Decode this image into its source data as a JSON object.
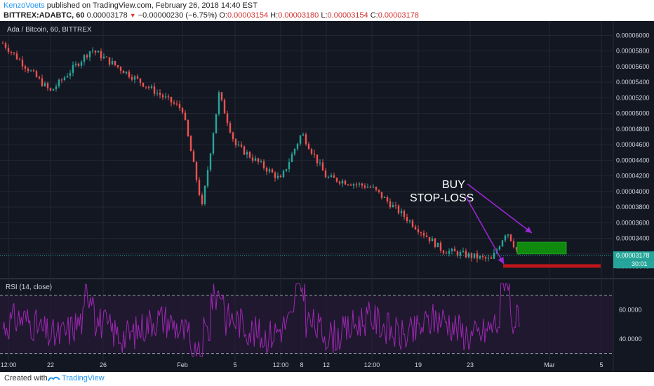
{
  "header": {
    "author": "KenzoVoets",
    "published": "published on TradingView.com, February 26, 2018 14:40 EST",
    "symbol": "BITTREX:ADABTC, 60",
    "last": "0.00003178",
    "change": "−0.00000230 (−6.75%)",
    "o_label": "O:",
    "o_value": "0.00003154",
    "h_label": "H:",
    "h_value": "0.00003180",
    "l_label": "L:",
    "l_value": "0.00003154",
    "c_label": "C:",
    "c_value": "0.00003178"
  },
  "footer": {
    "created_with": "Created with",
    "brand": "TradingView"
  },
  "colors": {
    "background": "#131722",
    "up": "#26a69a",
    "down": "#ef5350",
    "rsi": "#9c27b0",
    "buy_zone": "#0f8a0f",
    "stop_loss": "#c0151c",
    "arrow": "#9c27d6"
  },
  "chart_data": [
    {
      "type": "candlestick",
      "title": "Ada / Bitcoin, 60, BITTREX",
      "x_tick_labels": [
        "12:00",
        "22",
        "26",
        "Feb",
        "5",
        "12:00",
        "8",
        "12",
        "12:00",
        "19",
        "23",
        "Mar",
        "5"
      ],
      "y_tick_labels": [
        "0.00006000",
        "0.00005800",
        "0.00005600",
        "0.00005400",
        "0.00005200",
        "0.00005000",
        "0.00004800",
        "0.00004600",
        "0.00004400",
        "0.00004200",
        "0.00004000",
        "0.00003800",
        "0.00003600",
        "0.00003400",
        "0.00003200",
        "0.00003040"
      ],
      "ylim": [
        3e-05,
        6.04e-05
      ],
      "last_price_label": "0.00003178",
      "countdown_label": "30:01",
      "annotations": {
        "buy": "BUY",
        "stop_loss": "STOP-LOSS",
        "buy_zone": {
          "low": 3.2e-05,
          "high": 3.35e-05
        },
        "stop_loss_level": 3.05e-05
      },
      "approx_close_path": [
        {
          "x": "12:00",
          "close": 5.9e-05
        },
        {
          "x": "22",
          "close": 5.28e-05
        },
        {
          "x": "26",
          "close": 5.82e-05
        },
        {
          "x": "Feb",
          "close": 5.05e-05
        },
        {
          "x": "Feb+1",
          "close": 3.8e-05
        },
        {
          "x": "Feb+2",
          "close": 5.25e-05
        },
        {
          "x": "5",
          "close": 4.6e-05
        },
        {
          "x": "12:00",
          "close": 4.15e-05
        },
        {
          "x": "8",
          "close": 4.75e-05
        },
        {
          "x": "12",
          "close": 4.18e-05
        },
        {
          "x": "12:00",
          "close": 4.05e-05
        },
        {
          "x": "19",
          "close": 3.25e-05
        },
        {
          "x": "23",
          "close": 3.12e-05
        },
        {
          "x": "24",
          "close": 3.5e-05
        },
        {
          "x": "25",
          "close": 3.18e-05
        }
      ]
    },
    {
      "type": "line",
      "title": "RSI (14, close)",
      "y_tick_labels": [
        "60.0000",
        "40.0000"
      ],
      "levels": [
        70,
        30
      ],
      "series": [
        {
          "name": "RSI (14, close)",
          "approx_range": [
            28,
            78
          ]
        }
      ]
    }
  ]
}
